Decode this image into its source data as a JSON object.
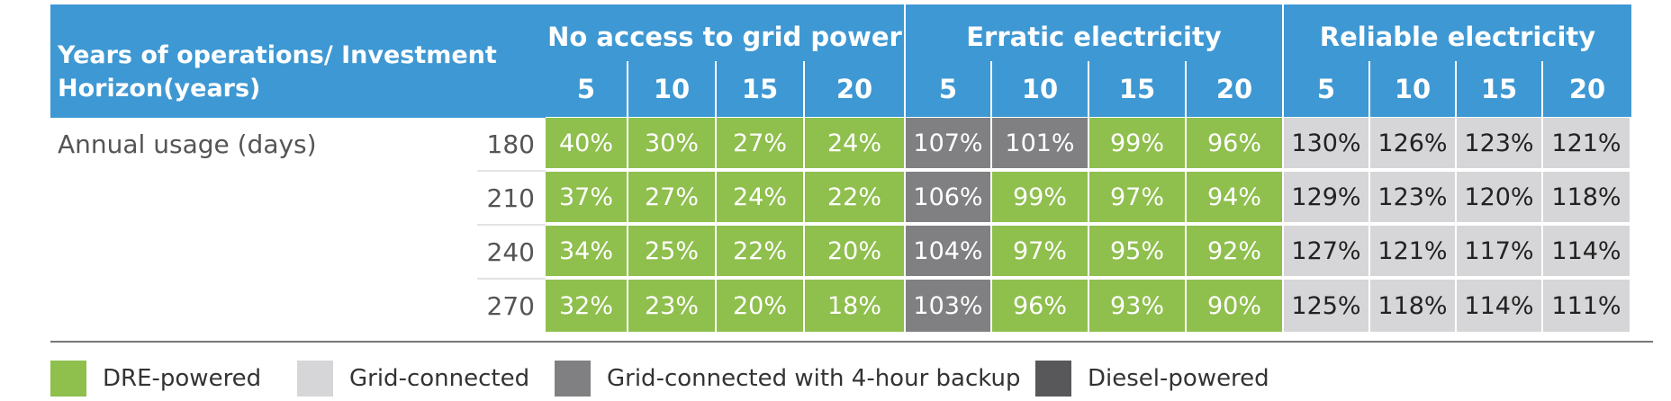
{
  "header": {
    "title": "Years of operations/ Investment Horizon(years)",
    "groups": [
      {
        "label": "No access to grid power",
        "years": [
          "5",
          "10",
          "15",
          "20"
        ]
      },
      {
        "label": "Erratic electricity",
        "years": [
          "5",
          "10",
          "15",
          "20"
        ]
      },
      {
        "label": "Reliable electricity",
        "years": [
          "5",
          "10",
          "15",
          "20"
        ]
      }
    ]
  },
  "row_label": "Annual usage (days)",
  "rows": [
    {
      "days": "180",
      "values": [
        "40%",
        "30%",
        "27%",
        "24%",
        "107%",
        "101%",
        "99%",
        "96%",
        "130%",
        "126%",
        "123%",
        "121%"
      ]
    },
    {
      "days": "210",
      "values": [
        "37%",
        "27%",
        "24%",
        "22%",
        "106%",
        "99%",
        "97%",
        "94%",
        "129%",
        "123%",
        "120%",
        "118%"
      ]
    },
    {
      "days": "240",
      "values": [
        "34%",
        "25%",
        "22%",
        "20%",
        "104%",
        "97%",
        "95%",
        "92%",
        "127%",
        "121%",
        "117%",
        "114%"
      ]
    },
    {
      "days": "270",
      "values": [
        "32%",
        "23%",
        "20%",
        "18%",
        "103%",
        "96%",
        "93%",
        "90%",
        "125%",
        "118%",
        "114%",
        "111%"
      ]
    }
  ],
  "cell_types": [
    [
      "dre",
      "dre",
      "dre",
      "dre",
      "backup",
      "backup",
      "dre",
      "dre",
      "grid",
      "grid",
      "grid",
      "grid"
    ],
    [
      "dre",
      "dre",
      "dre",
      "dre",
      "backup",
      "dre",
      "dre",
      "dre",
      "grid",
      "grid",
      "grid",
      "grid"
    ],
    [
      "dre",
      "dre",
      "dre",
      "dre",
      "backup",
      "dre",
      "dre",
      "dre",
      "grid",
      "grid",
      "grid",
      "grid"
    ],
    [
      "dre",
      "dre",
      "dre",
      "dre",
      "backup",
      "dre",
      "dre",
      "dre",
      "grid",
      "grid",
      "grid",
      "grid"
    ]
  ],
  "legend": [
    {
      "label": "DRE-powered",
      "color": "#8fbf4d"
    },
    {
      "label": "Grid-connected",
      "color": "#d6d6d8"
    },
    {
      "label": "Grid-connected with 4-hour backup",
      "color": "#808082"
    },
    {
      "label": "Diesel-powered",
      "color": "#58585a"
    }
  ]
}
